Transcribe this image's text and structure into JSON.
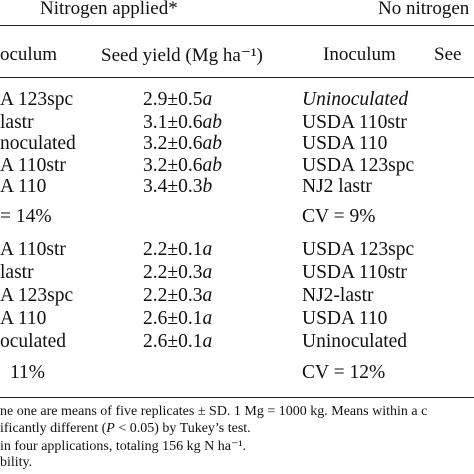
{
  "header": {
    "group_left": "Nitrogen applied*",
    "group_right": "No nitrogen",
    "col_inoculum_left": "oculum",
    "col_seed_yield_left": "Seed yield (Mg ha⁻¹)",
    "col_inoculum_right": "Inoculum",
    "col_seed_right": "See"
  },
  "block1": {
    "rows": [
      {
        "inoc_left": "A 123spc",
        "yield": "2.9±0.5",
        "letter": "a",
        "inoc_right": "Uninoculated",
        "right_italic": true
      },
      {
        "inoc_left": "lastr",
        "yield": "3.1±0.6",
        "letter": "ab",
        "inoc_right": "USDA 110str",
        "right_italic": false
      },
      {
        "inoc_left": "noculated",
        "yield": "3.2±0.6",
        "letter": "ab",
        "inoc_right": "USDA 110",
        "right_italic": false
      },
      {
        "inoc_left": "A 110str",
        "yield": "3.2±0.6",
        "letter": "ab",
        "inoc_right": "USDA 123spc",
        "right_italic": false
      },
      {
        "inoc_left": "A 110",
        "yield": "3.4±0.3",
        "letter": "b",
        "inoc_right": "NJ2 lastr",
        "right_italic": false
      }
    ],
    "cv_left": "= 14%",
    "cv_right": "CV = 9%"
  },
  "block2": {
    "rows": [
      {
        "inoc_left": "A 110str",
        "yield": "2.2±0.1",
        "letter": "a",
        "inoc_right": "USDA 123spc"
      },
      {
        "inoc_left": "lastr",
        "yield": "2.2±0.3",
        "letter": "a",
        "inoc_right": "USDA 110str"
      },
      {
        "inoc_left": "A 123spc",
        "yield": "2.2±0.3",
        "letter": "a",
        "inoc_right": "NJ2-lastr"
      },
      {
        "inoc_left": "A 110",
        "yield": "2.6±0.1",
        "letter": "a",
        "inoc_right": "USDA 110"
      },
      {
        "inoc_left": "oculated",
        "yield": "2.6±0.1",
        "letter": "a",
        "inoc_right": "Uninoculated"
      }
    ],
    "cv_left": "11%",
    "cv_right": "CV = 12%"
  },
  "footnotes": {
    "line1": "ne one are means of five replicates ± SD. 1 Mg = 1000 kg. Means within a c",
    "line2_pre": "ificantly different (",
    "line2_p": "P",
    "line2_post": " < 0.05) by Tukey’s test.",
    "line3": "in four applications, totaling 156 kg N ha⁻¹.",
    "line4": "bility."
  }
}
